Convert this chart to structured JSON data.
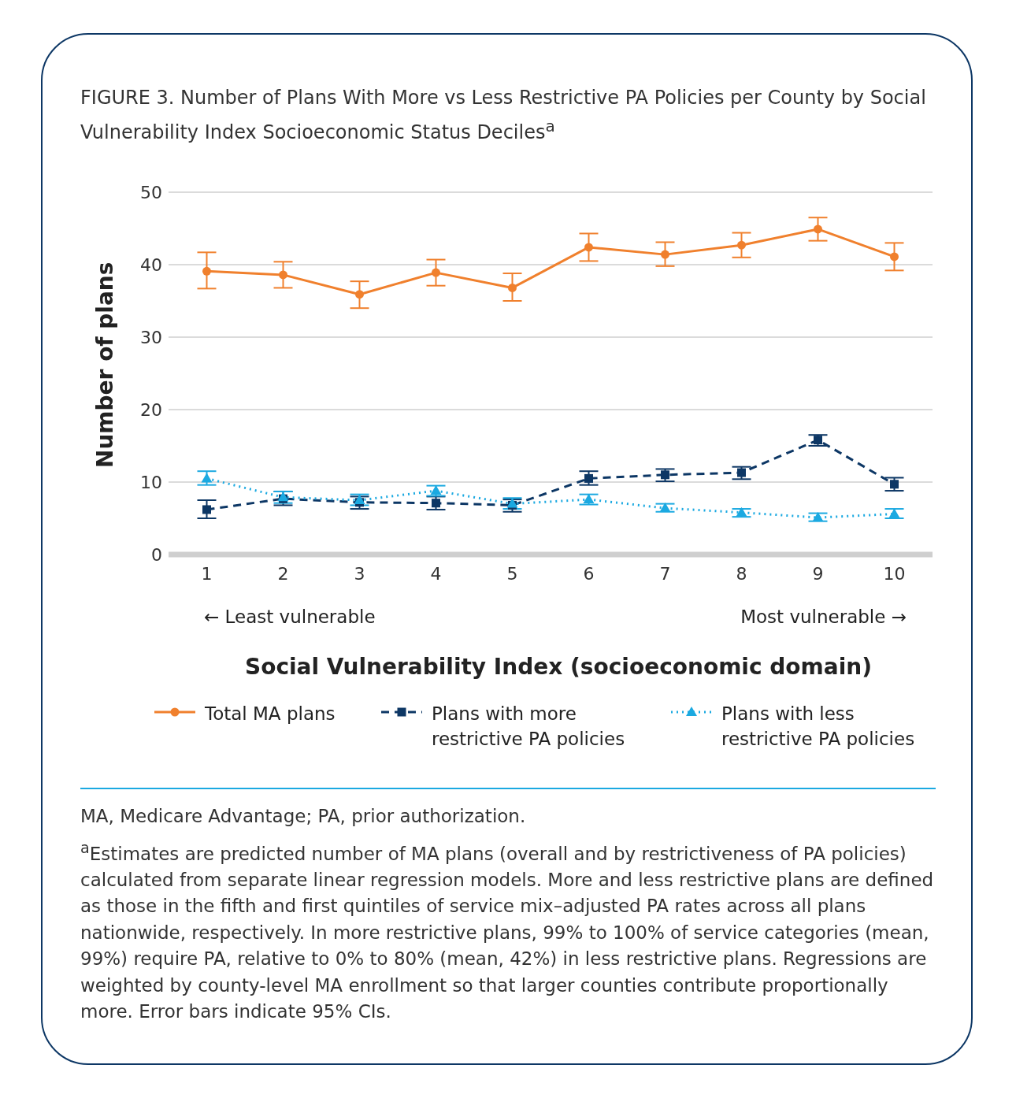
{
  "chart_data": {
    "type": "line",
    "title": "FIGURE 3. Number of Plans With More vs Less Restrictive PA Policies per County by Social Vulnerability Index Socioeconomic Status Deciles$^{a}$",
    "xlabel": "Social Vulnerability Index (socioeconomic domain)",
    "ylabel": "Number of plans",
    "categories": [
      "1",
      "2",
      "3",
      "4",
      "5",
      "6",
      "7",
      "8",
      "9",
      "10"
    ],
    "series": [
      {
        "name": "Total MA plans",
        "color": "#f0802d",
        "marker": "circle",
        "line_style": "solid",
        "values": [
          39.1,
          38.6,
          35.9,
          38.9,
          36.8,
          42.4,
          41.4,
          42.7,
          44.9,
          41.1
        ],
        "errors": [
          [
            36.7,
            41.7
          ],
          [
            36.8,
            40.4
          ],
          [
            34.0,
            37.7
          ],
          [
            37.1,
            40.7
          ],
          [
            35.0,
            38.8
          ],
          [
            40.5,
            44.3
          ],
          [
            39.8,
            43.1
          ],
          [
            41.0,
            44.4
          ],
          [
            43.3,
            46.5
          ],
          [
            39.2,
            43.0
          ]
        ]
      },
      {
        "name": "Plans with more restrictive PA policies",
        "color": "#0d3765",
        "marker": "square",
        "line_style": "dashed",
        "values": [
          6.2,
          7.7,
          7.2,
          7.1,
          6.8,
          10.5,
          11.0,
          11.3,
          15.8,
          9.7
        ],
        "errors": [
          [
            5.0,
            7.5
          ],
          [
            6.8,
            8.7
          ],
          [
            6.3,
            8.0
          ],
          [
            6.2,
            8.0
          ],
          [
            5.9,
            7.6
          ],
          [
            9.6,
            11.5
          ],
          [
            10.1,
            11.8
          ],
          [
            10.4,
            12.1
          ],
          [
            15.0,
            16.5
          ],
          [
            8.8,
            10.6
          ]
        ]
      },
      {
        "name": "Plans with less restrictive PA policies",
        "color": "#1ba9e1",
        "marker": "triangle",
        "line_style": "dotted",
        "values": [
          10.5,
          7.9,
          7.5,
          8.8,
          7.0,
          7.6,
          6.4,
          5.8,
          5.1,
          5.6
        ],
        "errors": [
          [
            9.6,
            11.5
          ],
          [
            7.1,
            8.7
          ],
          [
            6.8,
            8.3
          ],
          [
            8.1,
            9.5
          ],
          [
            6.3,
            7.8
          ],
          [
            6.9,
            8.3
          ],
          [
            5.9,
            7.0
          ],
          [
            5.2,
            6.3
          ],
          [
            4.6,
            5.7
          ],
          [
            5.0,
            6.3
          ]
        ]
      }
    ],
    "ylim": [
      0,
      50
    ],
    "yticks": [
      0,
      10,
      20,
      30,
      40,
      50
    ],
    "grid": "y",
    "legend": "bottom",
    "annotations": [
      "← Least vulnerable",
      "Most vulnerable →",
      "MA, Medicare Advantage; PA, prior authorization.",
      "$^{a}$Estimates are predicted number of MA plans (overall and by restrictiveness of PA policies) calculated from separate linear regression models. More and less restrictive plans are defined as those in the fifth and first quintiles of service mix–adjusted PA rates across all plans nationwide, respectively. In more restrictive plans, 99% to 100% of service categories (mean, 99%) require PA, relative to 0% to 80% (mean, 42%) in less restrictive plans. Regressions are weighted by county-level MA enrollment so that larger counties contribute proportionally more. Error bars indicate 95% CIs."
    ]
  }
}
